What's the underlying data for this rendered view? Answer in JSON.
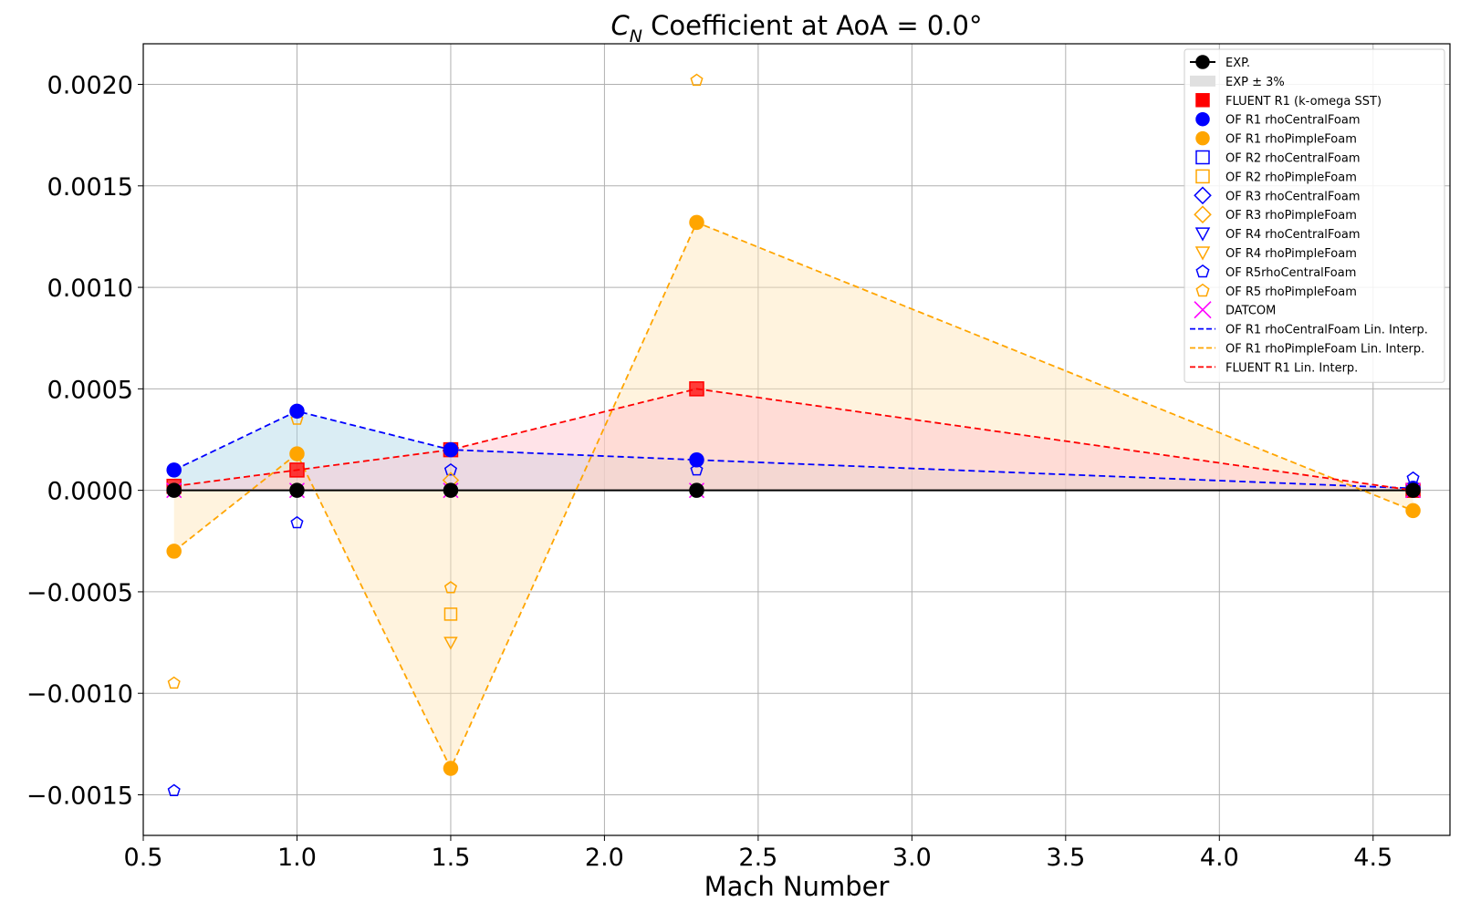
{
  "chart_data": {
    "type": "line",
    "title": "C_N Coefficient at AoA = 0.0°",
    "title_main": "C",
    "title_sub": "N",
    "title_rest": " Coefficient at AoA = 0.0°",
    "xlabel": "Mach Number",
    "ylabel": "",
    "xlim": [
      0.5,
      4.75
    ],
    "ylim": [
      -0.0017,
      0.0022
    ],
    "xticks": [
      0.5,
      1.0,
      1.5,
      2.0,
      2.5,
      3.0,
      3.5,
      4.0,
      4.5
    ],
    "xtick_labels": [
      "0.5",
      "1.0",
      "1.5",
      "2.0",
      "2.5",
      "3.0",
      "3.5",
      "4.0",
      "4.5"
    ],
    "yticks": [
      -0.0015,
      -0.001,
      -0.0005,
      0.0,
      0.0005,
      0.001,
      0.0015,
      0.002
    ],
    "ytick_labels": [
      "−0.0015",
      "−0.0010",
      "−0.0005",
      "0.0000",
      "0.0005",
      "0.0010",
      "0.0015",
      "0.0020"
    ],
    "grid": true,
    "legend_position": "top-right",
    "series": [
      {
        "name": "EXP.",
        "kind": "line-marker",
        "marker": "circle",
        "color": "#000000",
        "fill": true,
        "x": [
          0.6,
          1.0,
          1.5,
          2.3,
          4.63
        ],
        "y": [
          0.0,
          0.0,
          0.0,
          0.0,
          0.0
        ]
      },
      {
        "name": "EXP ± 3%",
        "kind": "band",
        "color": "#e0e0e0",
        "x": [
          0.6,
          4.63
        ],
        "y": [
          0.0,
          0.0
        ]
      },
      {
        "name": "FLUENT R1 (k-omega SST)",
        "kind": "marker",
        "marker": "square",
        "color": "#ff0000",
        "fill": true,
        "x": [
          0.6,
          1.0,
          1.5,
          2.3,
          4.63
        ],
        "y": [
          2e-05,
          0.0001,
          0.0002,
          0.0005,
          0.0
        ]
      },
      {
        "name": "OF R1 rhoCentralFoam",
        "kind": "marker",
        "marker": "circle",
        "color": "#0000ff",
        "fill": true,
        "x": [
          0.6,
          1.0,
          1.5,
          2.3,
          4.63
        ],
        "y": [
          0.0001,
          0.00039,
          0.0002,
          0.00015,
          1e-05
        ]
      },
      {
        "name": "OF R1 rhoPimpleFoam",
        "kind": "marker",
        "marker": "circle",
        "color": "#ffa500",
        "fill": true,
        "x": [
          0.6,
          1.0,
          1.5,
          2.3,
          4.63
        ],
        "y": [
          -0.0003,
          0.00018,
          -0.00137,
          0.00132,
          -0.0001
        ]
      },
      {
        "name": "OF R2 rhoCentralFoam",
        "kind": "marker",
        "marker": "square",
        "color": "#0000ff",
        "fill": false,
        "x": [],
        "y": []
      },
      {
        "name": "OF R2 rhoPimpleFoam",
        "kind": "marker",
        "marker": "square",
        "color": "#ffa500",
        "fill": false,
        "x": [
          1.5
        ],
        "y": [
          -0.00061
        ]
      },
      {
        "name": "OF R3 rhoCentralFoam",
        "kind": "marker",
        "marker": "diamond",
        "color": "#0000ff",
        "fill": false,
        "x": [],
        "y": []
      },
      {
        "name": "OF R3 rhoPimpleFoam",
        "kind": "marker",
        "marker": "diamond",
        "color": "#ffa500",
        "fill": false,
        "x": [
          1.5
        ],
        "y": [
          5e-05
        ]
      },
      {
        "name": "OF R4 rhoCentralFoam",
        "kind": "marker",
        "marker": "triangle-down",
        "color": "#0000ff",
        "fill": false,
        "x": [],
        "y": []
      },
      {
        "name": "OF R4 rhoPimpleFoam",
        "kind": "marker",
        "marker": "triangle-down",
        "color": "#ffa500",
        "fill": false,
        "x": [
          1.5
        ],
        "y": [
          -0.00075
        ]
      },
      {
        "name": "OF R5rhoCentralFoam",
        "kind": "marker",
        "marker": "pentagon",
        "color": "#0000ff",
        "fill": false,
        "x": [
          0.6,
          1.0,
          1.5,
          2.3,
          4.63
        ],
        "y": [
          -0.00148,
          -0.00016,
          0.0001,
          0.0001,
          6e-05
        ]
      },
      {
        "name": "OF R5 rhoPimpleFoam",
        "kind": "marker",
        "marker": "pentagon",
        "color": "#ffa500",
        "fill": false,
        "x": [
          0.6,
          1.0,
          1.5,
          2.3
        ],
        "y": [
          -0.00095,
          0.00035,
          -0.00048,
          0.00202
        ]
      },
      {
        "name": "DATCOM",
        "kind": "marker",
        "marker": "x",
        "color": "#ff00ff",
        "fill": false,
        "x": [
          0.6,
          1.0,
          1.5,
          2.3,
          4.63
        ],
        "y": [
          0.0,
          0.0,
          0.0,
          0.0,
          0.0
        ]
      },
      {
        "name": "OF R1 rhoCentralFoam Lin. Interp.",
        "kind": "dashed-line",
        "color": "#0000ff",
        "area": "#add8e6",
        "x": [
          0.6,
          1.0,
          1.5,
          2.3,
          4.63
        ],
        "y": [
          0.0001,
          0.00039,
          0.0002,
          0.00015,
          1e-05
        ]
      },
      {
        "name": "OF R1 rhoPimpleFoam Lin. Interp.",
        "kind": "dashed-line",
        "color": "#ffa500",
        "area": "#ffe4b5",
        "x": [
          0.6,
          1.0,
          1.5,
          2.3,
          4.63
        ],
        "y": [
          -0.0003,
          0.00018,
          -0.00137,
          0.00132,
          -0.0001
        ]
      },
      {
        "name": "FLUENT R1 Lin. Interp.",
        "kind": "dashed-line",
        "color": "#ff0000",
        "area": "#ffc0cb",
        "x": [
          0.6,
          1.0,
          1.5,
          2.3,
          4.63
        ],
        "y": [
          2e-05,
          0.0001,
          0.0002,
          0.0005,
          0.0
        ]
      }
    ]
  }
}
